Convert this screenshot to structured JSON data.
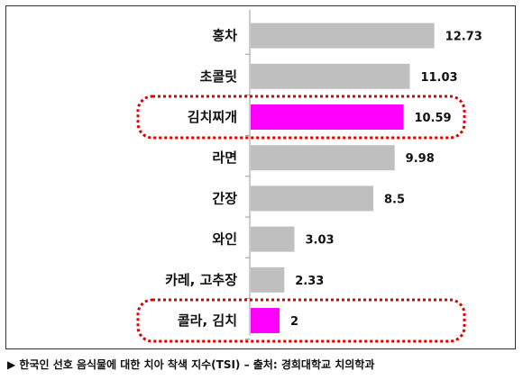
{
  "chart_data": {
    "type": "bar",
    "orientation": "horizontal",
    "categories": [
      "홍차",
      "초콜릿",
      "김치찌개",
      "라면",
      "간장",
      "와인",
      "카레, 고추장",
      "콜라, 김치"
    ],
    "values": [
      12.73,
      11.03,
      10.59,
      9.98,
      8.5,
      3.03,
      2.33,
      2
    ],
    "highlighted": [
      "김치찌개",
      "콜라, 김치"
    ],
    "xlim": [
      0,
      15
    ],
    "grid": false,
    "colors": {
      "bar": "#bfbfbf",
      "highlight_bar": "#ff00ff",
      "highlight_box": "#e00000",
      "axis": "#999999"
    }
  },
  "caption": "▶ 한국인 선호 음식물에 대한 치아 착색 지수(TSI) – 출처: 경희대학교 치의학과"
}
